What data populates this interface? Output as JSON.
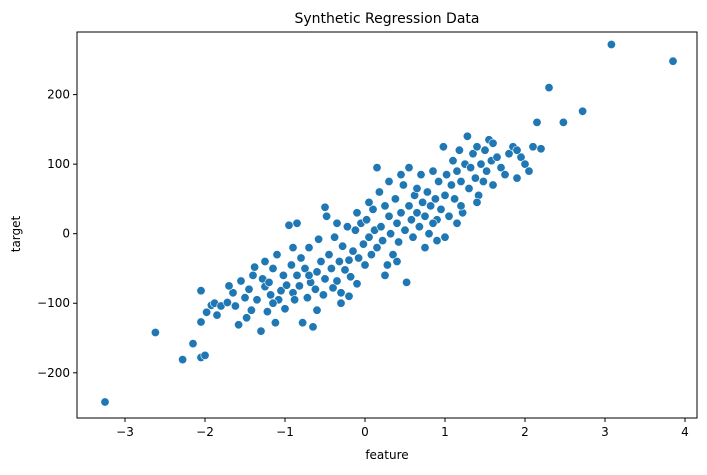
{
  "chart_data": {
    "type": "scatter",
    "title": "Synthetic Regression Data",
    "xlabel": "feature",
    "ylabel": "target",
    "xlim": [
      -3.6,
      4.15
    ],
    "ylim": [
      -265,
      290
    ],
    "xticks": [
      -3,
      -2,
      -1,
      0,
      1,
      2,
      3,
      4
    ],
    "yticks": [
      -200,
      -100,
      0,
      100,
      200
    ],
    "grid": false,
    "legend": "none",
    "marker_color": "#1f77b4",
    "marker_edge_color": "#ffffff",
    "points": [
      [
        -3.25,
        -242
      ],
      [
        -2.62,
        -142
      ],
      [
        -2.28,
        -181
      ],
      [
        -2.15,
        -158
      ],
      [
        -2.05,
        -178
      ],
      [
        -2.0,
        -175
      ],
      [
        -2.05,
        -127
      ],
      [
        -2.05,
        -82
      ],
      [
        -1.98,
        -113
      ],
      [
        -1.92,
        -103
      ],
      [
        -1.88,
        -100
      ],
      [
        -1.85,
        -117
      ],
      [
        -1.8,
        -104
      ],
      [
        -1.72,
        -99
      ],
      [
        -1.65,
        -85
      ],
      [
        -1.62,
        -104
      ],
      [
        -1.58,
        -131
      ],
      [
        -1.55,
        -68
      ],
      [
        -1.5,
        -92
      ],
      [
        -1.48,
        -121
      ],
      [
        -1.45,
        -80
      ],
      [
        -1.42,
        -110
      ],
      [
        -1.38,
        -48
      ],
      [
        -1.35,
        -95
      ],
      [
        -1.3,
        -140
      ],
      [
        -1.28,
        -65
      ],
      [
        -1.25,
        -76
      ],
      [
        -1.22,
        -112
      ],
      [
        -1.2,
        -70
      ],
      [
        -1.18,
        -88
      ],
      [
        -1.15,
        -50
      ],
      [
        -1.12,
        -128
      ],
      [
        -1.1,
        -30
      ],
      [
        -1.08,
        -95
      ],
      [
        -1.05,
        -82
      ],
      [
        -1.02,
        -60
      ],
      [
        -1.0,
        -108
      ],
      [
        -0.98,
        -74
      ],
      [
        -0.95,
        12
      ],
      [
        -0.92,
        -45
      ],
      [
        -0.9,
        -85
      ],
      [
        -0.88,
        -95
      ],
      [
        -0.85,
        -60
      ],
      [
        -0.82,
        -75
      ],
      [
        -0.8,
        -35
      ],
      [
        -0.78,
        -128
      ],
      [
        -0.75,
        -50
      ],
      [
        -0.72,
        -92
      ],
      [
        -0.7,
        -20
      ],
      [
        -0.68,
        -70
      ],
      [
        -0.65,
        -134
      ],
      [
        -0.62,
        -80
      ],
      [
        -0.6,
        -55
      ],
      [
        -0.58,
        -8
      ],
      [
        -0.55,
        -40
      ],
      [
        -0.52,
        -88
      ],
      [
        -0.5,
        -65
      ],
      [
        -0.48,
        25
      ],
      [
        -0.45,
        -30
      ],
      [
        -0.42,
        -50
      ],
      [
        -0.4,
        -78
      ],
      [
        -0.38,
        -5
      ],
      [
        -0.35,
        -68
      ],
      [
        -0.32,
        -40
      ],
      [
        -0.3,
        -100
      ],
      [
        -0.28,
        -18
      ],
      [
        -0.25,
        -52
      ],
      [
        -0.22,
        10
      ],
      [
        -0.2,
        -38
      ],
      [
        -0.18,
        -62
      ],
      [
        -0.15,
        -25
      ],
      [
        -0.12,
        5
      ],
      [
        -0.1,
        -72
      ],
      [
        -0.08,
        -35
      ],
      [
        -0.05,
        15
      ],
      [
        -0.02,
        -15
      ],
      [
        0.0,
        -45
      ],
      [
        0.02,
        20
      ],
      [
        0.05,
        -5
      ],
      [
        0.08,
        -30
      ],
      [
        0.1,
        35
      ],
      [
        0.12,
        5
      ],
      [
        0.15,
        -20
      ],
      [
        0.18,
        60
      ],
      [
        0.2,
        10
      ],
      [
        0.22,
        -10
      ],
      [
        0.25,
        40
      ],
      [
        0.28,
        -45
      ],
      [
        0.3,
        25
      ],
      [
        0.32,
        0
      ],
      [
        0.35,
        -30
      ],
      [
        0.38,
        50
      ],
      [
        0.4,
        15
      ],
      [
        0.42,
        -12
      ],
      [
        0.45,
        30
      ],
      [
        0.48,
        70
      ],
      [
        0.5,
        5
      ],
      [
        0.52,
        -70
      ],
      [
        0.55,
        40
      ],
      [
        0.58,
        20
      ],
      [
        0.6,
        -5
      ],
      [
        0.62,
        55
      ],
      [
        0.65,
        30
      ],
      [
        0.68,
        10
      ],
      [
        0.7,
        85
      ],
      [
        0.72,
        45
      ],
      [
        0.75,
        25
      ],
      [
        0.78,
        60
      ],
      [
        0.8,
        0
      ],
      [
        0.82,
        40
      ],
      [
        0.85,
        90
      ],
      [
        0.88,
        50
      ],
      [
        0.9,
        20
      ],
      [
        0.92,
        75
      ],
      [
        0.95,
        35
      ],
      [
        0.98,
        125
      ],
      [
        1.0,
        55
      ],
      [
        1.02,
        85
      ],
      [
        1.05,
        25
      ],
      [
        1.08,
        70
      ],
      [
        1.1,
        105
      ],
      [
        1.12,
        50
      ],
      [
        1.15,
        90
      ],
      [
        1.18,
        120
      ],
      [
        1.2,
        75
      ],
      [
        1.22,
        30
      ],
      [
        1.25,
        100
      ],
      [
        1.28,
        140
      ],
      [
        1.3,
        65
      ],
      [
        1.32,
        95
      ],
      [
        1.35,
        115
      ],
      [
        1.38,
        80
      ],
      [
        1.4,
        125
      ],
      [
        1.42,
        55
      ],
      [
        1.45,
        100
      ],
      [
        1.48,
        75
      ],
      [
        1.5,
        120
      ],
      [
        1.52,
        90
      ],
      [
        1.55,
        135
      ],
      [
        1.58,
        105
      ],
      [
        1.6,
        70
      ],
      [
        1.65,
        110
      ],
      [
        1.7,
        95
      ],
      [
        1.75,
        85
      ],
      [
        1.8,
        115
      ],
      [
        1.85,
        125
      ],
      [
        1.9,
        80
      ],
      [
        1.95,
        110
      ],
      [
        2.0,
        100
      ],
      [
        2.05,
        90
      ],
      [
        2.1,
        125
      ],
      [
        2.15,
        160
      ],
      [
        2.2,
        122
      ],
      [
        2.3,
        210
      ],
      [
        2.48,
        160
      ],
      [
        2.72,
        176
      ],
      [
        3.08,
        272
      ],
      [
        3.85,
        248
      ],
      [
        -1.7,
        -75
      ],
      [
        -1.4,
        -60
      ],
      [
        -1.15,
        -100
      ],
      [
        -0.9,
        -20
      ],
      [
        -0.6,
        -110
      ],
      [
        -0.3,
        -85
      ],
      [
        -0.1,
        30
      ],
      [
        0.15,
        95
      ],
      [
        0.4,
        -40
      ],
      [
        0.65,
        65
      ],
      [
        0.9,
        -10
      ],
      [
        1.15,
        15
      ],
      [
        1.4,
        45
      ],
      [
        -0.5,
        38
      ],
      [
        -0.7,
        -60
      ],
      [
        -1.25,
        -40
      ],
      [
        -0.35,
        15
      ],
      [
        0.05,
        45
      ],
      [
        0.3,
        75
      ],
      [
        0.55,
        95
      ],
      [
        0.75,
        -20
      ],
      [
        1.0,
        -5
      ],
      [
        1.2,
        40
      ],
      [
        -0.85,
        15
      ],
      [
        -0.2,
        -90
      ],
      [
        0.25,
        -60
      ],
      [
        0.45,
        85
      ],
      [
        0.85,
        15
      ],
      [
        1.6,
        130
      ],
      [
        1.9,
        120
      ]
    ]
  }
}
